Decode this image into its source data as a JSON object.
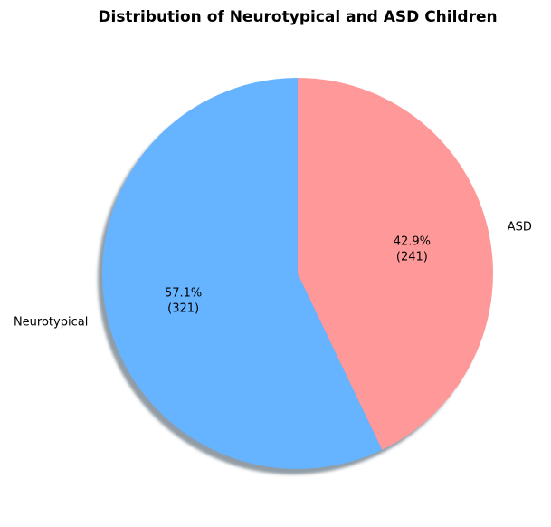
{
  "chart_data": {
    "type": "pie",
    "title": "Distribution of Neurotypical and ASD Children",
    "categories": [
      "Neurotypical",
      "ASD"
    ],
    "values": [
      321,
      241
    ],
    "percent_labels": [
      "57.1%",
      "42.9%"
    ],
    "count_labels": [
      "(321)",
      "(241)"
    ],
    "colors": [
      "#66b3ff",
      "#ff9999"
    ],
    "start_angle_deg": 90,
    "direction": "counterclockwise",
    "shadow": true,
    "legend": "none"
  }
}
